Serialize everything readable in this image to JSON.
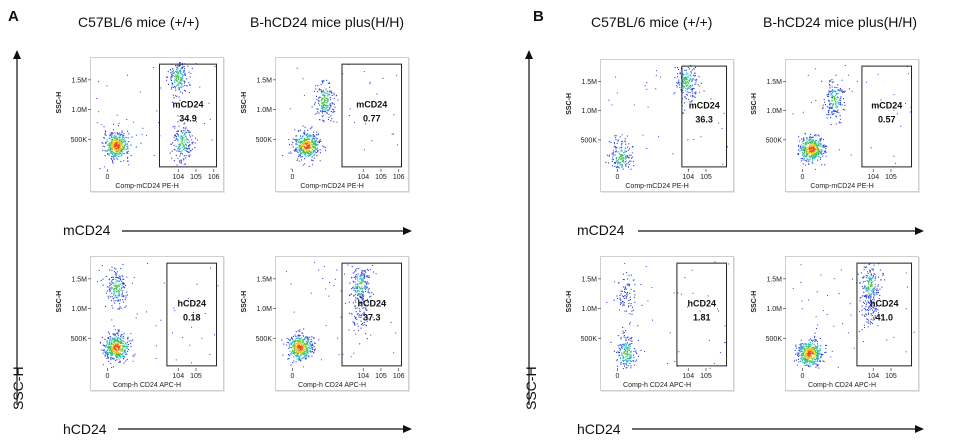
{
  "panels": [
    {
      "letter": "A",
      "col_titles": [
        "C57BL/6 mice (+/+)",
        "B-hCD24 mice plus(H/H)"
      ],
      "y_axis_label": "SSC-H",
      "row_labels": [
        "mCD24",
        "hCD24"
      ]
    },
    {
      "letter": "B",
      "col_titles": [
        "C57BL/6 mice (+/+)",
        "B-hCD24 mice plus(H/H)"
      ],
      "y_axis_label": "SSC-H",
      "row_labels": [
        "mCD24",
        "hCD24"
      ]
    }
  ],
  "chart_data": [
    {
      "type": "scatter",
      "panel": "A",
      "row": "mCD24",
      "column": "C57BL/6 mice (+/+)",
      "xlabel": "Comp-mCD24 PE-H",
      "ylabel": "SSC-H",
      "y_ticks": [
        "500K",
        "1.0M",
        "1.5M"
      ],
      "x_ticks": [
        "0",
        "10^4",
        "10^5",
        "10^6"
      ],
      "gate": {
        "name": "mCD24",
        "value": "34.9"
      },
      "clusters": [
        {
          "x": 0.5,
          "y": 400000,
          "density": "high"
        },
        {
          "x": 4.0,
          "y": 1550000,
          "density": "medium"
        },
        {
          "x": 4.2,
          "y": 450000,
          "density": "medium"
        }
      ]
    },
    {
      "type": "scatter",
      "panel": "A",
      "row": "mCD24",
      "column": "B-hCD24 mice plus(H/H)",
      "xlabel": "Comp-mCD24 PE-H",
      "ylabel": "SSC-H",
      "y_ticks": [
        "500K",
        "1.0M",
        "1.5M"
      ],
      "x_ticks": [
        "0",
        "10^4",
        "10^5",
        "10^6"
      ],
      "gate": {
        "name": "mCD24",
        "value": "0.77"
      },
      "clusters": [
        {
          "x": 0.8,
          "y": 400000,
          "density": "high"
        },
        {
          "x": 1.8,
          "y": 1150000,
          "density": "medium"
        }
      ]
    },
    {
      "type": "scatter",
      "panel": "A",
      "row": "hCD24",
      "column": "C57BL/6 mice (+/+)",
      "xlabel": "Comp-h CD24 APC-H",
      "ylabel": "SSC-H",
      "y_ticks": [
        "500K",
        "1.0M",
        "1.5M"
      ],
      "x_ticks": [
        "0",
        "10^4",
        "10^5"
      ],
      "gate": {
        "name": "hCD24",
        "value": "0.18"
      },
      "clusters": [
        {
          "x": 0.5,
          "y": 350000,
          "density": "high"
        },
        {
          "x": 0.5,
          "y": 1350000,
          "density": "medium"
        }
      ]
    },
    {
      "type": "scatter",
      "panel": "A",
      "row": "hCD24",
      "column": "B-hCD24 mice plus(H/H)",
      "xlabel": "Comp-h CD24 APC-H",
      "ylabel": "SSC-H",
      "y_ticks": [
        "500K",
        "1.0M",
        "1.5M"
      ],
      "x_ticks": [
        "0",
        "10^4",
        "10^5",
        "10^6"
      ],
      "gate": {
        "name": "hCD24",
        "value": "37.3"
      },
      "clusters": [
        {
          "x": 0.4,
          "y": 350000,
          "density": "high"
        },
        {
          "x": 3.8,
          "y": 1400000,
          "density": "medium"
        },
        {
          "x": 3.8,
          "y": 900000,
          "density": "low"
        }
      ]
    },
    {
      "type": "scatter",
      "panel": "B",
      "row": "mCD24",
      "column": "C57BL/6 mice (+/+)",
      "xlabel": "Comp-mCD24 PE-H",
      "ylabel": "SSC-H",
      "y_ticks": [
        "500K",
        "1.0M",
        "1.5M"
      ],
      "x_ticks": [
        "0",
        "10^4",
        "10^5"
      ],
      "gate": {
        "name": "mCD24",
        "value": "36.3"
      },
      "clusters": [
        {
          "x": 0.2,
          "y": 200000,
          "density": "medium"
        },
        {
          "x": 3.9,
          "y": 1500000,
          "density": "medium"
        }
      ]
    },
    {
      "type": "scatter",
      "panel": "B",
      "row": "mCD24",
      "column": "B-hCD24 mice plus(H/H)",
      "xlabel": "Comp-mCD24 PE-H",
      "ylabel": "SSC-H",
      "y_ticks": [
        "500K",
        "1.0M",
        "1.5M"
      ],
      "x_ticks": [
        "0",
        "10^4",
        "10^5"
      ],
      "gate": {
        "name": "mCD24",
        "value": "0.57"
      },
      "clusters": [
        {
          "x": 0.5,
          "y": 350000,
          "density": "high"
        },
        {
          "x": 1.8,
          "y": 1200000,
          "density": "medium"
        }
      ]
    },
    {
      "type": "scatter",
      "panel": "B",
      "row": "hCD24",
      "column": "C57BL/6 mice (+/+)",
      "xlabel": "Comp-h CD24 APC-H",
      "ylabel": "SSC-H",
      "y_ticks": [
        "500K",
        "1.0M",
        "1.5M"
      ],
      "x_ticks": [
        "0",
        "10^4",
        "10^5"
      ],
      "gate": {
        "name": "hCD24",
        "value": "1.81"
      },
      "clusters": [
        {
          "x": 0.5,
          "y": 250000,
          "density": "medium"
        },
        {
          "x": 0.5,
          "y": 1250000,
          "density": "low"
        }
      ]
    },
    {
      "type": "scatter",
      "panel": "B",
      "row": "hCD24",
      "column": "B-hCD24 mice plus(H/H)",
      "xlabel": "Comp-h CD24 APC-H",
      "ylabel": "SSC-H",
      "y_ticks": [
        "500K",
        "1.0M",
        "1.5M"
      ],
      "x_ticks": [
        "0",
        "10^4",
        "10^5"
      ],
      "gate": {
        "name": "hCD24",
        "value": "41.0"
      },
      "clusters": [
        {
          "x": 0.4,
          "y": 250000,
          "density": "high"
        },
        {
          "x": 3.8,
          "y": 1400000,
          "density": "medium"
        },
        {
          "x": 3.8,
          "y": 1000000,
          "density": "low"
        }
      ]
    }
  ]
}
